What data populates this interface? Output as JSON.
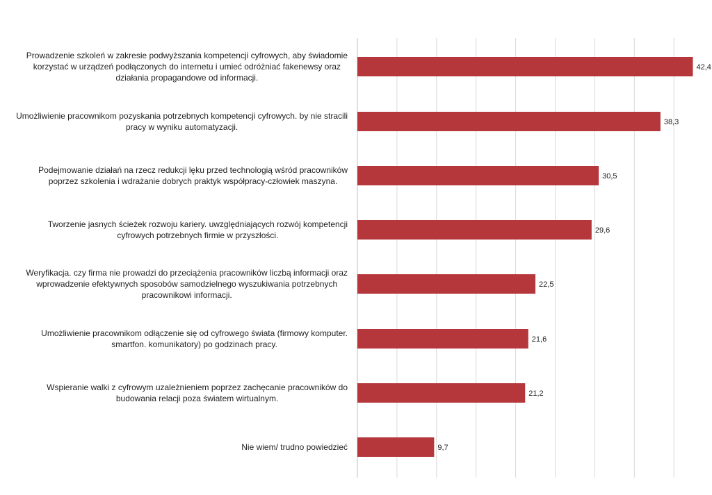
{
  "chart_data": {
    "type": "bar",
    "orientation": "horizontal",
    "title": "",
    "xlabel": "",
    "ylabel": "",
    "xlim": [
      0,
      45
    ],
    "grid": true,
    "bar_color": "#b5373b",
    "categories": [
      "Prowadzenie szkoleń w zakresie podwyższania kompetencji cyfrowych, aby świadomie korzystać w urządzeń podłączonych do internetu i umieć odróżniać fakenewsy oraz działania propagandowe od informacji.",
      "Umożliwienie pracownikom pozyskania potrzebnych kompetencji cyfrowych. by nie stracili pracy w wyniku automatyzacji.",
      "Podejmowanie działań na rzecz redukcji lęku przed technologią wśród pracowników poprzez szkolenia i wdrażanie dobrych praktyk współpracy-człowiek maszyna.",
      "Tworzenie jasnych ścieżek rozwoju kariery. uwzględniających rozwój kompetencji cyfrowych potrzebnych firmie w przyszłości.",
      "Weryfikacja. czy firma nie prowadzi do przeciążenia pracowników liczbą informacji oraz wprowadzenie efektywnych sposobów samodzielnego wyszukiwania potrzebnych pracownikowi informacji.",
      "Umożliwienie pracownikom odłączenie się od cyfrowego świata (firmowy komputer. smartfon. komunikatory) po godzinach pracy.",
      "Wspieranie walki z cyfrowym uzależnieniem poprzez zachęcanie pracowników do budowania relacji poza światem wirtualnym.",
      "Nie wiem/ trudno powiedzieć"
    ],
    "label_lines": [
      [
        "Prowadzenie szkoleń w zakresie podwyższania kompetencji cyfrowych, aby świadomie",
        "korzystać w urządzeń podłączonych do internetu i umieć odróżniać fakenewsy oraz",
        "działania propagandowe od informacji."
      ],
      [
        "Umożliwienie pracownikom pozyskania potrzebnych kompetencji cyfrowych. by nie stracili",
        "pracy w wyniku automatyzacji."
      ],
      [
        "Podejmowanie działań na rzecz redukcji lęku przed technologią wśród pracowników",
        "poprzez szkolenia i wdrażanie dobrych praktyk współpracy-człowiek maszyna."
      ],
      [
        "Tworzenie jasnych ścieżek rozwoju kariery. uwzględniających rozwój kompetencji",
        "cyfrowych potrzebnych firmie w przyszłości."
      ],
      [
        "Weryfikacja. czy firma nie prowadzi do przeciążenia pracowników liczbą informacji oraz",
        "wprowadzenie efektywnych sposobów samodzielnego wyszukiwania potrzebnych",
        "pracownikowi informacji."
      ],
      [
        "Umożliwienie pracownikom odłączenie się od cyfrowego świata (firmowy komputer.",
        "smartfon. komunikatory) po godzinach pracy."
      ],
      [
        "Wspieranie walki z cyfrowym uzależnieniem poprzez zachęcanie pracowników do",
        "budowania relacji poza światem wirtualnym."
      ],
      [
        "Nie wiem/ trudno powiedzieć"
      ]
    ],
    "values": [
      42.4,
      38.3,
      30.5,
      29.6,
      22.5,
      21.6,
      21.2,
      9.7
    ],
    "value_labels": [
      "42,4",
      "38,3",
      "30,5",
      "29,6",
      "22,5",
      "21,6",
      "21,2",
      "9,7"
    ]
  }
}
